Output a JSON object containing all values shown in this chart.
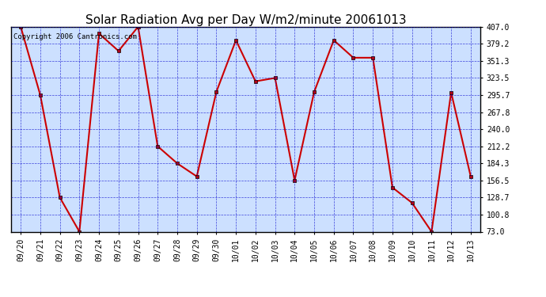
{
  "title": "Solar Radiation Avg per Day W/m2/minute 20061013",
  "copyright_text": "Copyright 2006 Cantronics.com",
  "x_labels": [
    "09/20",
    "09/21",
    "09/22",
    "09/23",
    "09/24",
    "09/25",
    "09/26",
    "09/27",
    "09/28",
    "09/29",
    "09/30",
    "10/01",
    "10/02",
    "10/03",
    "10/04",
    "10/05",
    "10/06",
    "10/07",
    "10/08",
    "10/09",
    "10/10",
    "10/11",
    "10/12",
    "10/13"
  ],
  "y_values": [
    407.0,
    295.7,
    128.7,
    73.0,
    396.0,
    367.5,
    407.0,
    212.2,
    184.3,
    163.0,
    300.8,
    385.0,
    318.0,
    323.5,
    156.5,
    300.8,
    385.0,
    356.5,
    356.5,
    145.0,
    120.0,
    73.0,
    300.0,
    163.0
  ],
  "ylim_min": 73.0,
  "ylim_max": 407.0,
  "ytick_values": [
    73.0,
    100.8,
    128.7,
    156.5,
    184.3,
    212.2,
    240.0,
    267.8,
    295.7,
    323.5,
    351.3,
    379.2,
    407.0
  ],
  "line_color": "#cc0000",
  "marker_color": "#cc0000",
  "bg_color": "#ffffff",
  "plot_bg_color": "#cce0ff",
  "grid_color": "#0000cc",
  "title_fontsize": 11,
  "tick_fontsize": 7,
  "copyright_fontsize": 6.5
}
